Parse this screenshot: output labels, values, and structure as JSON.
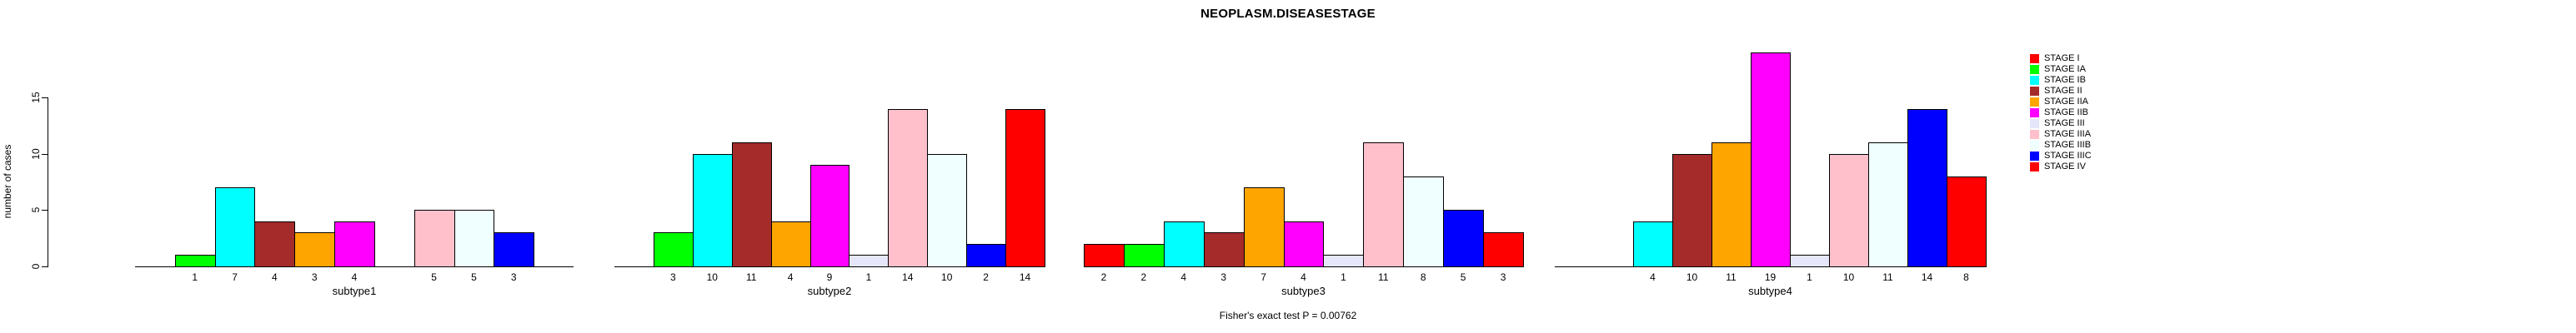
{
  "title": "NEOPLASM.DISEASESTAGE",
  "caption": "Fisher's exact test P = 0.00762",
  "chart_data": {
    "type": "bar",
    "title": "NEOPLASM.DISEASESTAGE",
    "ylabel": "number of cases",
    "yticks": [
      0,
      5,
      10,
      15
    ],
    "ylim": [
      0,
      19
    ],
    "grid": false,
    "legend_position": "right",
    "bar_value_labels_shown": true,
    "categories": [
      "STAGE I",
      "STAGE IA",
      "STAGE IB",
      "STAGE II",
      "STAGE IIA",
      "STAGE IIB",
      "STAGE III",
      "STAGE IIIA",
      "STAGE IIIB",
      "STAGE IIIC",
      "STAGE IV"
    ],
    "colors": [
      "#FF0000",
      "#00FF00",
      "#00FFFF",
      "#A52A2A",
      "#FFA500",
      "#FF00FF",
      "#E6E6FA",
      "#FFC0CB",
      "#F0FFFF",
      "#0000FF",
      "#FF0000"
    ],
    "series": [
      {
        "name": "subtype1",
        "values": [
          0,
          1,
          7,
          4,
          3,
          4,
          0,
          5,
          5,
          3,
          0
        ]
      },
      {
        "name": "subtype2",
        "values": [
          0,
          3,
          10,
          11,
          4,
          9,
          1,
          14,
          10,
          2,
          14
        ]
      },
      {
        "name": "subtype3",
        "values": [
          2,
          2,
          4,
          3,
          7,
          4,
          1,
          11,
          8,
          5,
          3
        ]
      },
      {
        "name": "subtype4",
        "values": [
          0,
          0,
          4,
          10,
          11,
          19,
          1,
          10,
          11,
          14,
          8
        ]
      }
    ],
    "caption": "Fisher's exact test P = 0.00762"
  }
}
